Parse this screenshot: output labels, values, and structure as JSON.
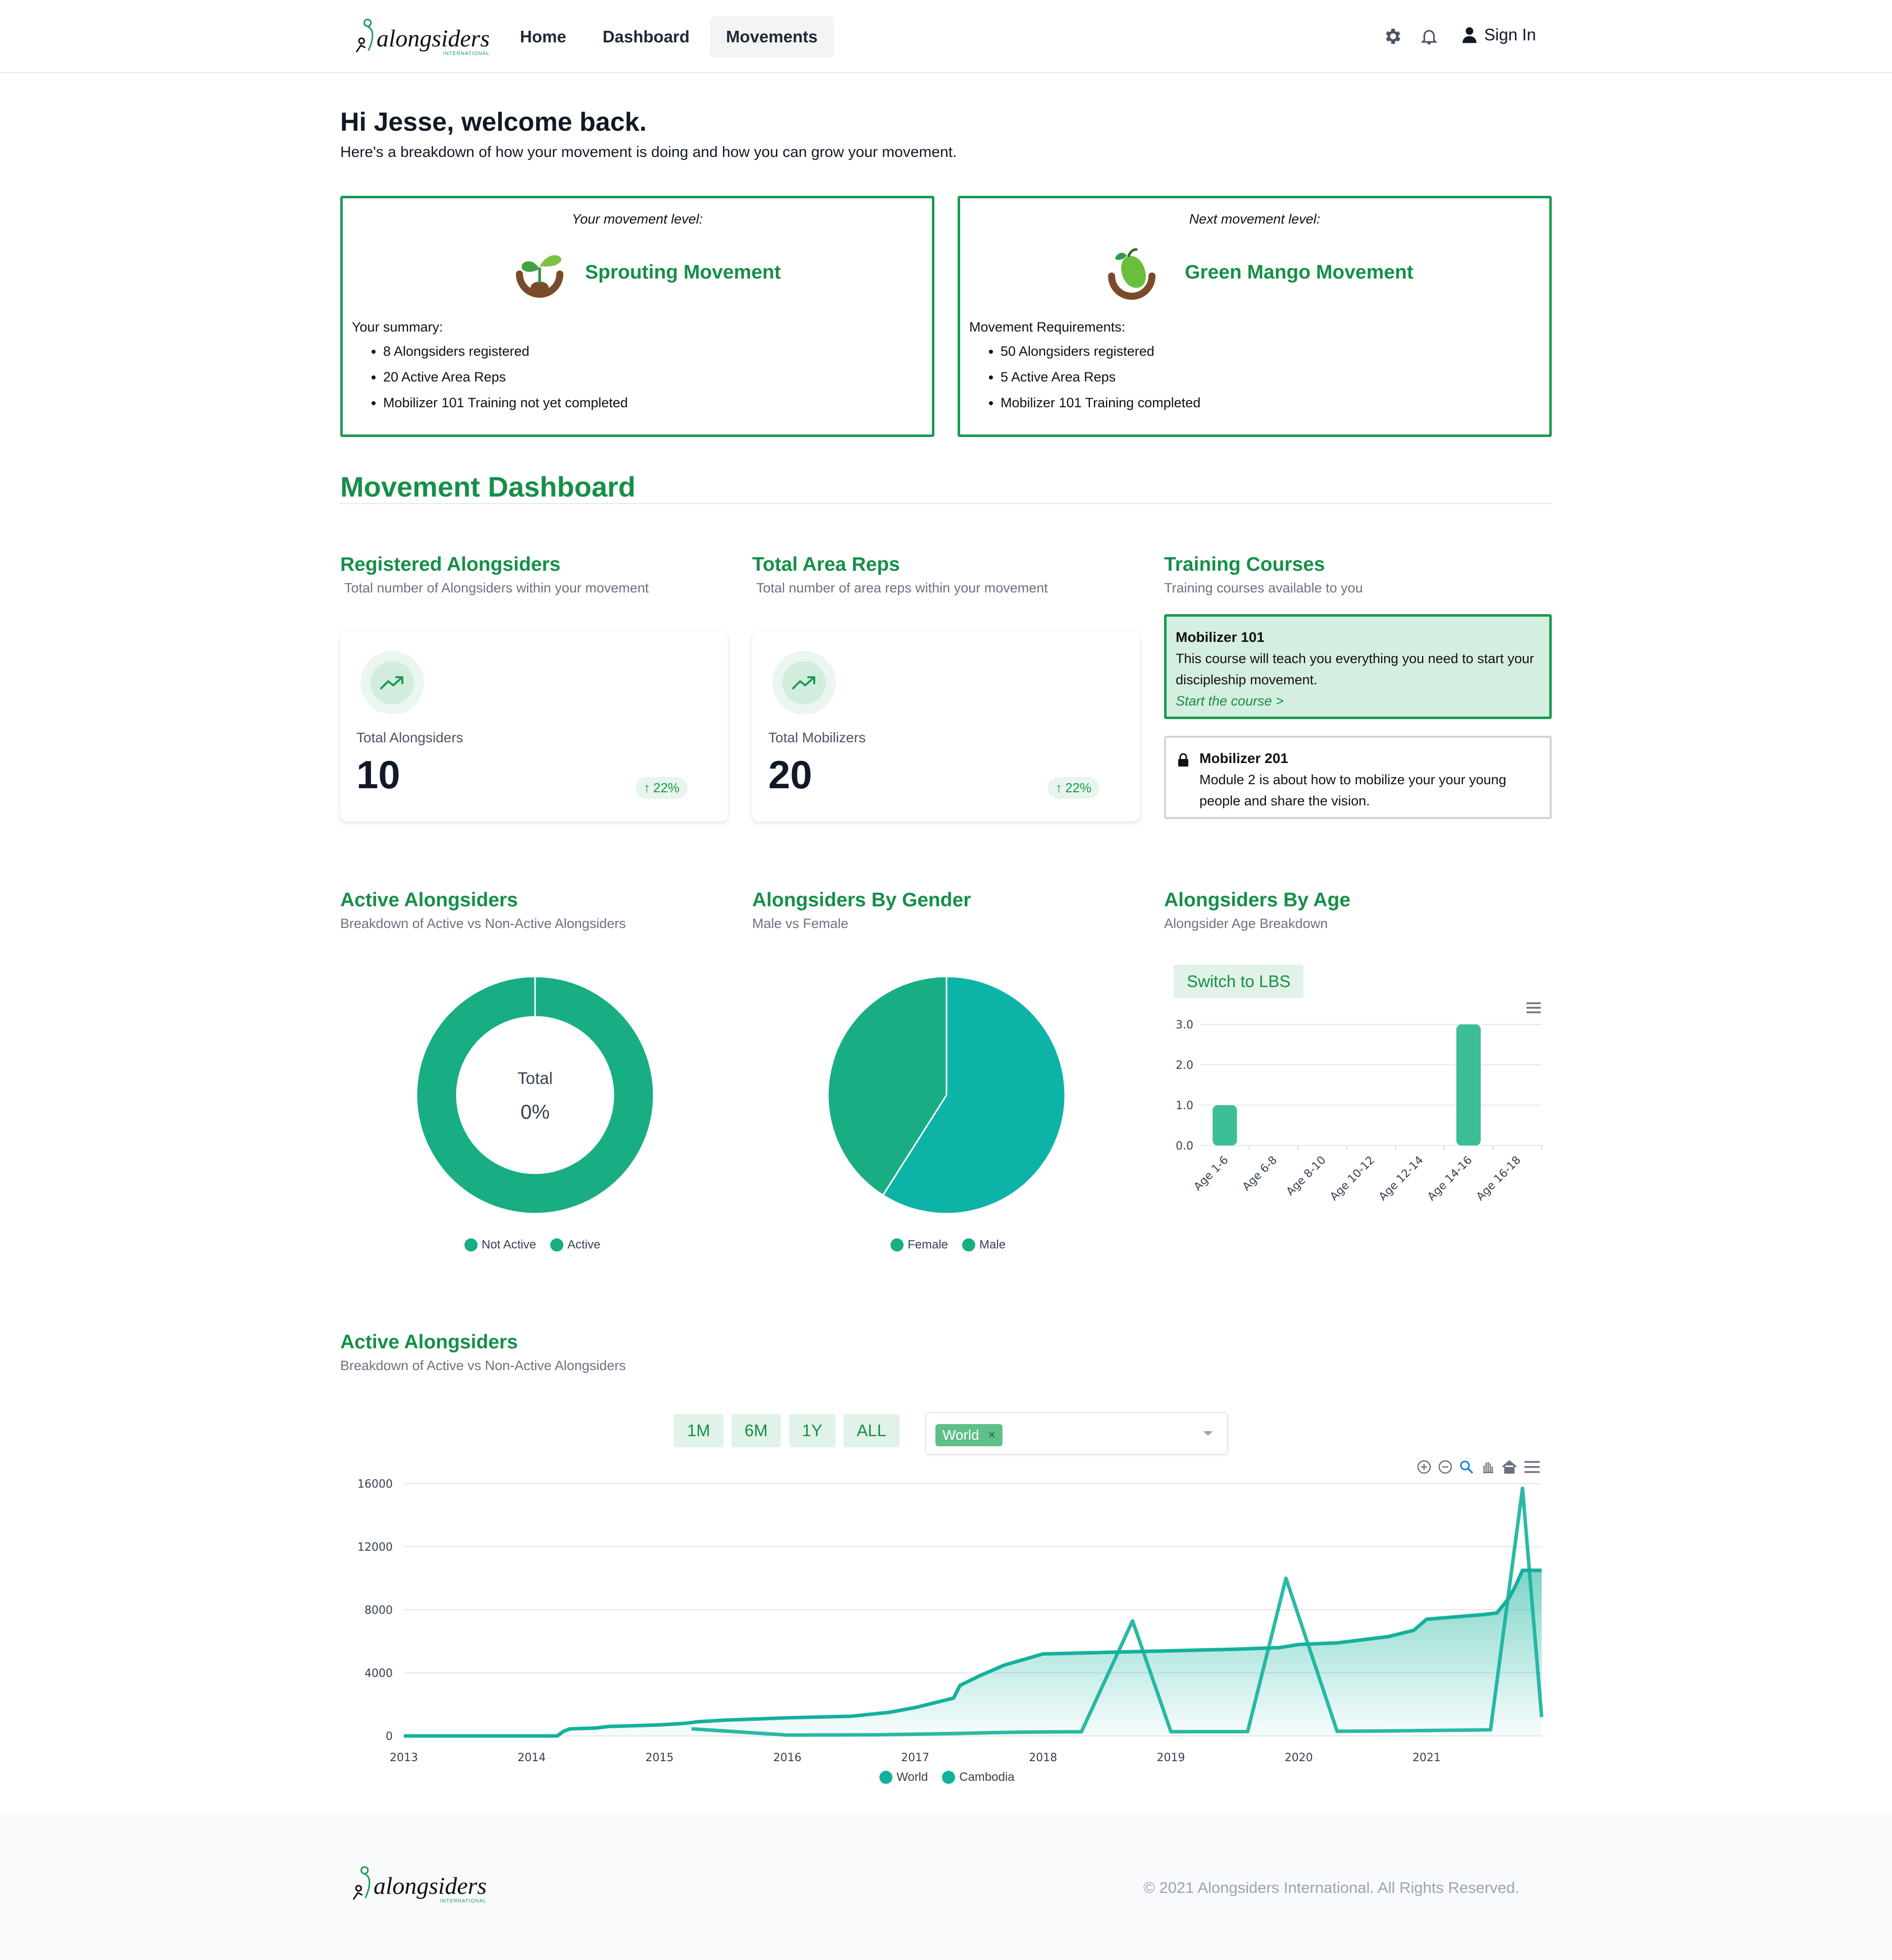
{
  "nav": {
    "logo_text": "alongsiders",
    "logo_sub": "International",
    "links": [
      "Home",
      "Dashboard",
      "Movements"
    ],
    "active_link": "Movements",
    "sign_in": "Sign In"
  },
  "greeting": {
    "title": "Hi Jesse, welcome back.",
    "subtitle": "Here's a breakdown of how your movement is doing and how you can grow your movement."
  },
  "levels": {
    "current": {
      "caption": "Your movement level:",
      "name": "Sprouting Movement",
      "list_title": "Your summary:",
      "items": [
        "8 Alongsiders registered",
        "20 Active Area Reps",
        "Mobilizer 101 Training not yet completed"
      ]
    },
    "next": {
      "caption": "Next movement level:",
      "name": "Green Mango Movement",
      "list_title": "Movement Requirements:",
      "items": [
        "50 Alongsiders registered",
        "5 Active Area Reps",
        "Mobilizer 101 Training completed"
      ]
    }
  },
  "dashboard": {
    "title": "Movement Dashboard",
    "registered": {
      "title": "Registered Alongsiders",
      "subtitle": "Total number of Alongsiders within your movement",
      "label": "Total Alongsiders",
      "value": "10",
      "change": "22%"
    },
    "area_reps": {
      "title": "Total Area Reps",
      "subtitle": "Total number of area reps within your movement",
      "label": "Total Mobilizers",
      "value": "20",
      "change": "22%"
    },
    "training": {
      "title": "Training Courses",
      "subtitle": "Training courses available to you",
      "courses": [
        {
          "title": "Mobilizer 101",
          "desc": "This course will teach you everything you need to start your discipleship movement.",
          "link": "Start the course >"
        },
        {
          "title": "Mobilizer 201",
          "desc": "Module 2 is about how to mobilize your your young people and share the vision."
        }
      ]
    },
    "active": {
      "title": "Active Alongsiders",
      "subtitle": "Breakdown of Active vs Non-Active Alongsiders",
      "center_title": "Total",
      "center_value": "0%",
      "legend": [
        "Not Active",
        "Active"
      ]
    },
    "gender": {
      "title": "Alongsiders By Gender",
      "subtitle": "Male vs Female",
      "legend": [
        "Female",
        "Male"
      ]
    },
    "age": {
      "title": "Alongsiders By Age",
      "subtitle": "Alongsider Age Breakdown",
      "switch_label": "Switch to LBS"
    },
    "timeline": {
      "title": "Active Alongsiders",
      "subtitle": "Breakdown of Active vs Non-Active Alongsiders",
      "ranges": [
        "1M",
        "6M",
        "1Y",
        "ALL"
      ],
      "selected_chip": "World",
      "chip_close": "×",
      "legend": [
        "World",
        "Cambodia"
      ]
    }
  },
  "footer": {
    "logo_text": "alongsiders",
    "logo_sub": "International",
    "copyright": "© 2021 Alongsiders International. All Rights Reserved."
  },
  "colors": {
    "brand_green": "#168f48",
    "chart_green": "#19ad84",
    "chart_teal": "#0db3a6"
  },
  "icons": [
    "gear-icon",
    "bell-icon",
    "user-icon",
    "trend-up-icon",
    "lock-icon",
    "menu-icon",
    "zoom-in-icon",
    "zoom-out-icon",
    "magnify-icon",
    "pan-icon",
    "home-icon",
    "chevron-down-icon"
  ],
  "chart_data": [
    {
      "type": "pie",
      "title": "Active Alongsiders",
      "donut": true,
      "labels": [
        "Not Active",
        "Active"
      ],
      "values": [
        100,
        0
      ],
      "colors": [
        "#19ad84",
        "#19ad84"
      ]
    },
    {
      "type": "pie",
      "title": "Alongsiders By Gender",
      "labels": [
        "Female",
        "Male"
      ],
      "values": [
        59,
        41
      ],
      "colors": [
        "#0db3a6",
        "#19ad84"
      ]
    },
    {
      "type": "bar",
      "title": "Alongsiders By Age",
      "categories": [
        "Age 1-6",
        "Age 6-8",
        "Age 8-10",
        "Age 10-12",
        "Age 12-14",
        "Age 14-16",
        "Age 16-18"
      ],
      "values": [
        1,
        0,
        0,
        0,
        0,
        3,
        0
      ],
      "yticks": [
        "0.0",
        "1.0",
        "2.0",
        "3.0"
      ],
      "ylim": [
        0,
        3
      ],
      "grid": true
    },
    {
      "type": "area",
      "title": "Active Alongsiders",
      "xticks": [
        "2013",
        "2014",
        "2015",
        "2016",
        "2017",
        "2018",
        "2019",
        "2020",
        "2021"
      ],
      "yticks": [
        "0",
        "4000",
        "8000",
        "12000",
        "16000"
      ],
      "xlim": [
        2013,
        2021.9
      ],
      "ylim": [
        0,
        16000
      ],
      "series": [
        {
          "name": "World",
          "x": [
            2013.0,
            2014.0,
            2014.2,
            2014.25,
            2014.3,
            2014.5,
            2014.6,
            2015.0,
            2015.2,
            2015.25,
            2015.3,
            2015.5,
            2016.0,
            2016.5,
            2016.8,
            2017.0,
            2017.3,
            2017.35,
            2017.5,
            2017.7,
            2018.0,
            2018.5,
            2019.0,
            2019.5,
            2019.85,
            2020.0,
            2020.3,
            2020.5,
            2020.7,
            2020.9,
            2021.0,
            2021.3,
            2021.45,
            2021.55,
            2021.65,
            2021.7,
            2021.75,
            2021.9
          ],
          "y": [
            0,
            0,
            0,
            300,
            450,
            500,
            600,
            700,
            800,
            850,
            900,
            1000,
            1150,
            1250,
            1500,
            1800,
            2400,
            3200,
            3800,
            4500,
            5200,
            5300,
            5400,
            5500,
            5600,
            5800,
            5900,
            6100,
            6300,
            6700,
            7400,
            7600,
            7700,
            7800,
            8800,
            9600,
            10500,
            10500
          ]
        },
        {
          "name": "Cambodia",
          "x": [
            2015.25,
            2016.0,
            2016.7,
            2017.4,
            2017.6,
            2017.8,
            2018.1,
            2018.3,
            2018.7,
            2019.0,
            2019.2,
            2019.4,
            2019.6,
            2019.9,
            2020.3,
            2020.6,
            2020.9,
            2021.5,
            2021.75,
            2021.9
          ],
          "y": [
            450,
            0,
            0,
            0,
            0,
            0,
            0,
            0,
            7300,
            0,
            0,
            0,
            0,
            10000,
            0,
            0,
            0,
            0,
            15700,
            1200
          ]
        }
      ],
      "colors": [
        "#13b19c",
        "#13b19c"
      ]
    }
  ]
}
